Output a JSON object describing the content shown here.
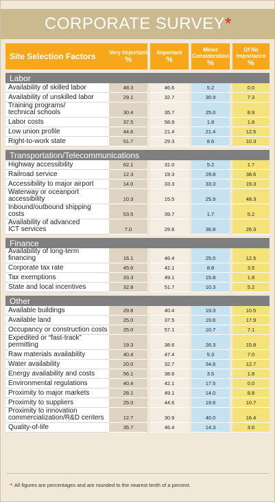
{
  "title": "CORPORATE SURVEY",
  "title_mark": "*",
  "headers": {
    "factor": "Site Selection Factors",
    "col1": "Very Important",
    "col2": "Important",
    "col3": "Minor Consideration",
    "col4": "Of No Importance",
    "unit": "%"
  },
  "sections": [
    {
      "name": "Labor",
      "rows": [
        {
          "label": "Availability of skilled labor",
          "values": [
            "48.3",
            "46.6",
            "5.2",
            "0.0"
          ]
        },
        {
          "label": "Availability of unskilled labor",
          "values": [
            "29.1",
            "32.7",
            "30.9",
            "7.3"
          ]
        },
        {
          "label": "Training programs/\ntechnical schools",
          "values": [
            "30.4",
            "35.7",
            "25.0",
            "8.9"
          ]
        },
        {
          "label": "Labor costs",
          "values": [
            "37.5",
            "58.9",
            "1.8",
            "1.8"
          ]
        },
        {
          "label": "Low union profile",
          "values": [
            "44.6",
            "21.4",
            "21.4",
            "12.5"
          ]
        },
        {
          "label": "Right-to-work state",
          "values": [
            "51.7",
            "29.3",
            "8.6",
            "10.3"
          ]
        }
      ]
    },
    {
      "name": "Transportation/Telecommunications",
      "rows": [
        {
          "label": "Highway accessibility",
          "values": [
            "62.1",
            "31.0",
            "5.2",
            "1.7"
          ]
        },
        {
          "label": "Railroad service",
          "values": [
            "12.3",
            "19.3",
            "29.8",
            "38.6"
          ]
        },
        {
          "label": "Accessibility to major airport",
          "values": [
            "14.0",
            "33.3",
            "33.3",
            "19.3"
          ]
        },
        {
          "label": "Waterway or oceanport\naccessibility",
          "values": [
            "10.3",
            "15.5",
            "25.9",
            "48.3"
          ]
        },
        {
          "label": "Inbound/outbound shipping\ncosts",
          "values": [
            "53.5",
            "39.7",
            "1.7",
            "5.2"
          ]
        },
        {
          "label": "Availability of advanced\nICT services",
          "values": [
            "7.0",
            "29.8",
            "36.8",
            "26.3"
          ]
        }
      ]
    },
    {
      "name": "Finance",
      "rows": [
        {
          "label": "Availability of long-term\nfinancing",
          "values": [
            "16.1",
            "46.4",
            "25.0",
            "12.5"
          ]
        },
        {
          "label": "Corporate tax rate",
          "values": [
            "45.6",
            "42.1",
            "8.8",
            "3.5"
          ]
        },
        {
          "label": "Tax exemptions",
          "values": [
            "33.3",
            "49.1",
            "15.8",
            "1.8"
          ]
        },
        {
          "label": "State and local incentives",
          "values": [
            "32.8",
            "51.7",
            "10.3",
            "5.2"
          ]
        }
      ]
    },
    {
      "name": "Other",
      "rows": [
        {
          "label": "Available buildings",
          "values": [
            "29.8",
            "40.4",
            "19.3",
            "10.5"
          ]
        },
        {
          "label": "Available land",
          "values": [
            "25.0",
            "37.5",
            "19.6",
            "17.9"
          ]
        },
        {
          "label": "Occupancy or construction costs",
          "values": [
            "25.0",
            "57.1",
            "10.7",
            "7.1"
          ]
        },
        {
          "label": "Expedited or “fast-track”\npermitting",
          "values": [
            "19.3",
            "38.6",
            "26.3",
            "15.8"
          ]
        },
        {
          "label": "Raw materials availability",
          "values": [
            "40.4",
            "47.4",
            "5.3",
            "7.0"
          ]
        },
        {
          "label": "Water availability",
          "values": [
            "20.0",
            "32.7",
            "34.6",
            "12.7"
          ]
        },
        {
          "label": "Energy availability and costs",
          "values": [
            "56.1",
            "38.6",
            "3.5",
            "1.8"
          ]
        },
        {
          "label": "Environmental regulations",
          "values": [
            "40.4",
            "42.1",
            "17.5",
            "0.0"
          ]
        },
        {
          "label": "Proximity to major markets",
          "values": [
            "28.1",
            "49.1",
            "14.0",
            "8.8"
          ]
        },
        {
          "label": "Proximity to suppliers",
          "values": [
            "25.0",
            "44.6",
            "19.6",
            "10.7"
          ]
        },
        {
          "label": "Proximity to innovation\ncommercialization/R&D centers",
          "values": [
            "12.7",
            "30.9",
            "40.0",
            "16.4"
          ]
        },
        {
          "label": "Quality-of-life",
          "values": [
            "35.7",
            "46.4",
            "14.3",
            "3.6"
          ]
        }
      ]
    }
  ],
  "footnote_mark": "*",
  "footnote": "All figures are percentages and are rounded to the nearest tenth of a percent.",
  "colors": {
    "header": "#f6a71b",
    "section": "#7f7f7f",
    "col1": "#dfd4c3",
    "col2": "#f3ede2",
    "col3": "#c6e2f0",
    "col4": "#f3e37a",
    "title_bar": "#cbb98f",
    "background": "#f1e8d8"
  }
}
